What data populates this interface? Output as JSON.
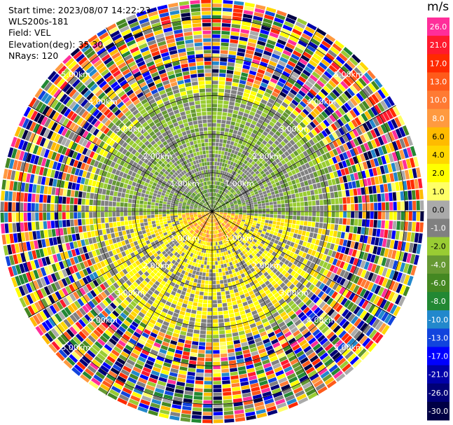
{
  "info": {
    "start_time": "Start time: 2023/08/07 14:22:23",
    "instrument": "WLS200s-181",
    "field": "Field: VEL",
    "elevation": "Elevation(deg): 35.30",
    "nrays": "NRays: 120"
  },
  "chart_data": {
    "type": "heatmap",
    "subtype": "polar-ppi",
    "field": "VEL",
    "units": "m/s",
    "nrays": 120,
    "range_rings_km": [
      1,
      2,
      3,
      4,
      5
    ],
    "ring_labels": [
      "1.00km",
      "2.00km",
      "3.00km",
      "4.00km",
      "5.00km"
    ],
    "spoke_angles_deg": [
      0,
      30,
      60,
      90,
      120,
      150,
      180,
      210,
      240,
      270,
      300,
      330
    ],
    "colorbar": {
      "unit_label": "m/s",
      "tick_labels": [
        "26.0",
        "21.0",
        "17.0",
        "13.0",
        "10.0",
        "8.0",
        "6.0",
        "4.0",
        "2.0",
        "1.0",
        "0.0",
        "-1.0",
        "-2.0",
        "-4.0",
        "-6.0",
        "-8.0",
        "-10.0",
        "-13.0",
        "-17.0",
        "-21.0",
        "-26.0",
        "-30.0"
      ],
      "colors": [
        "#ff2e9a",
        "#ff1a2e",
        "#ff2a00",
        "#ff5a1a",
        "#ff7a33",
        "#ff9a40",
        "#ffbb00",
        "#ffd700",
        "#ffff00",
        "#ffff66",
        "#aaaaaa",
        "#808080",
        "#99cc33",
        "#669933",
        "#448822",
        "#228833",
        "#2288cc",
        "#1144dd",
        "#0000ff",
        "#0000aa",
        "#000077",
        "#000044"
      ]
    },
    "regions": [
      {
        "range_km": [
          0,
          0.8
        ],
        "description": "mixed near-zero / positive with orange-red center",
        "dominant_values": [
          1.0,
          4.0,
          8.0
        ]
      },
      {
        "range_km": [
          0.8,
          3.0
        ],
        "description": "north half near zero (gray) with green, south half positive (yellow)",
        "dominant_values": [
          0.0,
          -2.0,
          2.0
        ]
      },
      {
        "range_km": [
          3.0,
          5.5
        ],
        "description": "noisy random velocities across full scale",
        "dominant_values": [
          -30.0,
          26.0
        ]
      }
    ]
  }
}
